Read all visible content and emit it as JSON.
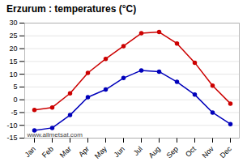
{
  "chart_data": {
    "type": "line",
    "title": "Erzurum : temperatures (°C)",
    "categories": [
      "Jan",
      "Feb",
      "Mar",
      "Apr",
      "May",
      "Jun",
      "Jul",
      "Aug",
      "Sep",
      "Oct",
      "Nov",
      "Dec"
    ],
    "series": [
      {
        "color": "#cc0000",
        "values": [
          -4,
          -3,
          2.5,
          10.5,
          16,
          21,
          26,
          26.5,
          22,
          14.5,
          5.5,
          -1.5
        ]
      },
      {
        "color": "#0000bb",
        "values": [
          -12,
          -11,
          -6,
          1,
          4,
          8.5,
          11.5,
          11,
          7,
          2,
          -5,
          -9.5
        ]
      }
    ],
    "marker": "circle",
    "ylim": [
      -15,
      30
    ],
    "yticks": [
      -15,
      -10,
      -5,
      0,
      5,
      10,
      15,
      20,
      25,
      30
    ],
    "grid": true,
    "annotation": "www.allmetsat.com"
  }
}
